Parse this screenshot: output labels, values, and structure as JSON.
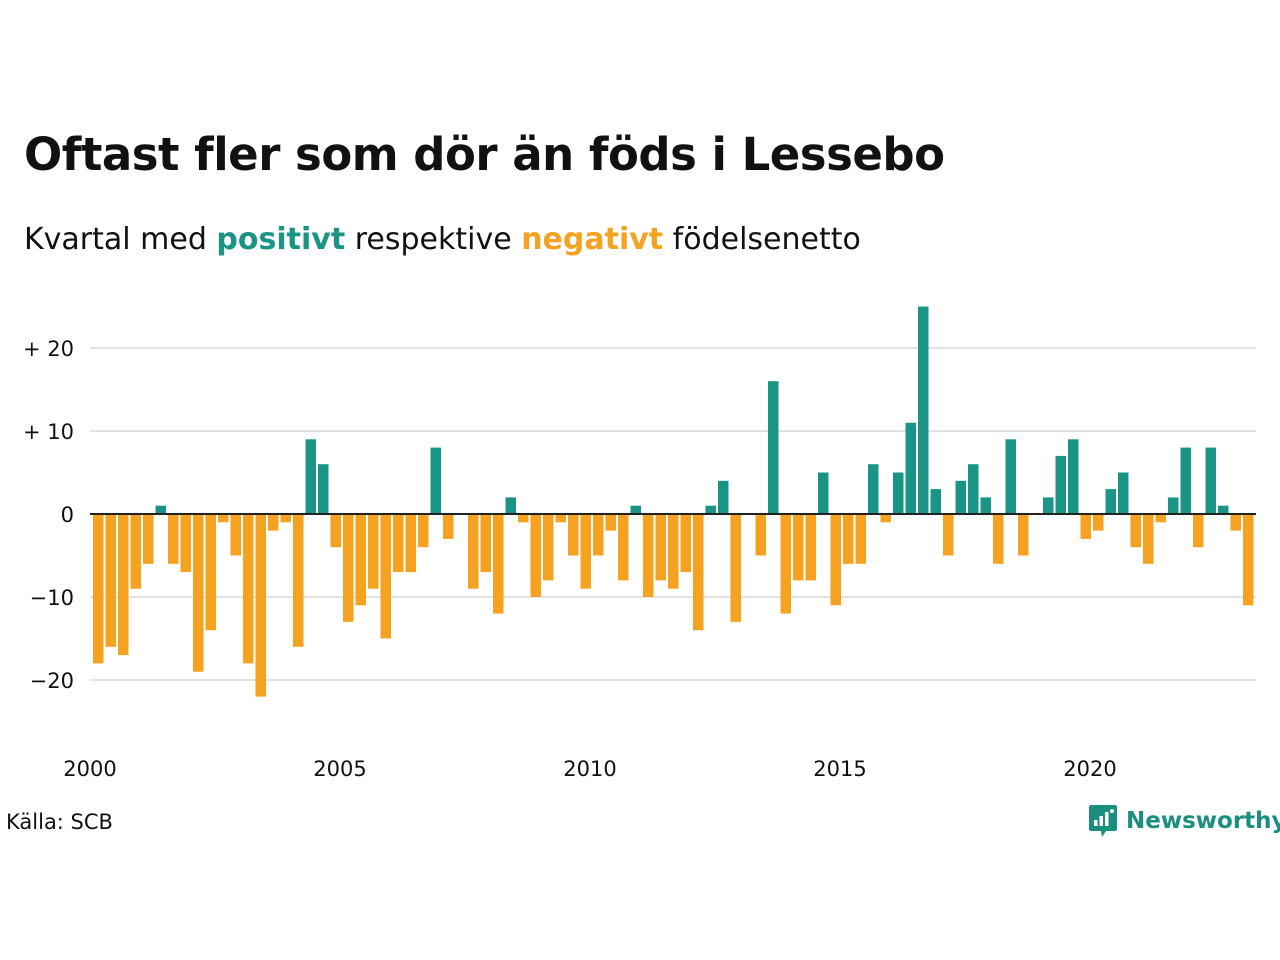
{
  "title": "Oftast fler som dör än föds i Lessebo",
  "subtitle": {
    "prefix": "Kvartal med ",
    "positive_word": "positivt",
    "middle": " respektive ",
    "negative_word": "negativt",
    "suffix": " födelsenetto"
  },
  "source": "Källa: SCB",
  "brand": {
    "name": "Newsworthy",
    "logo_icon": "newsworthy-chart-bubble-icon"
  },
  "colors": {
    "positive": "#1a9585",
    "negative": "#f4a21f",
    "grid": "#e2e2e2",
    "text": "#111111"
  },
  "chart_data": {
    "type": "bar",
    "title": "Oftast fler som dör än föds i Lessebo",
    "subtitle": "Kvartal med positivt respektive negativt födelsenetto",
    "xlabel": "",
    "ylabel": "",
    "start_year": 2000,
    "x_ticks": [
      "2000",
      "2005",
      "2010",
      "2015",
      "2020"
    ],
    "y_ticks": [
      {
        "value": 20,
        "label": "+ 20"
      },
      {
        "value": 10,
        "label": "+ 10"
      },
      {
        "value": 0,
        "label": "0"
      },
      {
        "value": -10,
        "label": "−10"
      },
      {
        "value": -20,
        "label": "−20"
      }
    ],
    "ylim": [
      -27,
      27
    ],
    "grid": true,
    "values": [
      -18,
      -16,
      -17,
      -9,
      -6,
      1,
      -6,
      -7,
      -19,
      -14,
      -1,
      -5,
      -18,
      -22,
      -2,
      -1,
      -16,
      9,
      6,
      -4,
      -13,
      -11,
      -9,
      -15,
      -7,
      -7,
      -4,
      8,
      -3,
      0,
      -9,
      -7,
      -12,
      2,
      -1,
      -10,
      -8,
      -1,
      -5,
      -9,
      -5,
      -2,
      -8,
      1,
      -10,
      -8,
      -9,
      -7,
      -14,
      1,
      4,
      -13,
      0,
      -5,
      16,
      -12,
      -8,
      -8,
      5,
      -11,
      -6,
      -6,
      6,
      -1,
      5,
      11,
      25,
      3,
      -5,
      4,
      6,
      2,
      -6,
      9,
      -5,
      0,
      2,
      7,
      9,
      -3,
      -2,
      3,
      5,
      -4,
      -6,
      -1,
      2,
      8,
      -4,
      8,
      1,
      -2,
      -11
    ]
  }
}
